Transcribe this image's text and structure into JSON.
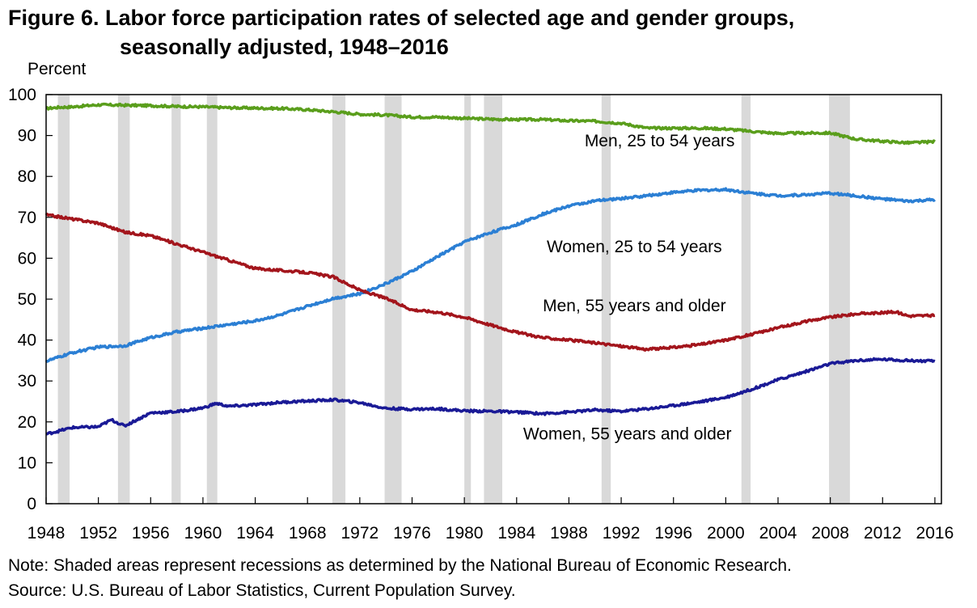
{
  "chart_data": {
    "type": "line",
    "title_line1": "Figure 6. Labor force participation rates of selected age and gender groups,",
    "title_line2": "seasonally adjusted, 1948–2016",
    "ylabel": "Percent",
    "xlim": [
      1948,
      2016.5
    ],
    "ylim": [
      0,
      100
    ],
    "x_ticks": [
      1948,
      1952,
      1956,
      1960,
      1964,
      1968,
      1972,
      1976,
      1980,
      1984,
      1988,
      1992,
      1996,
      2000,
      2004,
      2008,
      2012,
      2016
    ],
    "y_ticks": [
      0,
      10,
      20,
      30,
      40,
      50,
      60,
      70,
      80,
      90,
      100
    ],
    "grid": false,
    "recessions": [
      [
        1948.9,
        1949.8
      ],
      [
        1953.5,
        1954.4
      ],
      [
        1957.6,
        1958.3
      ],
      [
        1960.3,
        1961.1
      ],
      [
        1969.9,
        1970.9
      ],
      [
        1973.9,
        1975.2
      ],
      [
        1980.0,
        1980.5
      ],
      [
        1981.5,
        1982.9
      ],
      [
        1990.5,
        1991.2
      ],
      [
        2001.2,
        2001.9
      ],
      [
        2007.9,
        2009.5
      ]
    ],
    "series": [
      {
        "name": "Men, 25 to 54 years",
        "color": "#5a9e1c",
        "points": [
          [
            1948,
            96.6
          ],
          [
            1949,
            96.9
          ],
          [
            1950,
            97.0
          ],
          [
            1952,
            97.5
          ],
          [
            1954,
            97.4
          ],
          [
            1956,
            97.3
          ],
          [
            1958,
            97.1
          ],
          [
            1960,
            97.0
          ],
          [
            1962,
            96.8
          ],
          [
            1964,
            96.7
          ],
          [
            1966,
            96.6
          ],
          [
            1968,
            96.3
          ],
          [
            1970,
            95.8
          ],
          [
            1972,
            95.2
          ],
          [
            1974,
            95.0
          ],
          [
            1976,
            94.5
          ],
          [
            1978,
            94.5
          ],
          [
            1980,
            94.2
          ],
          [
            1982,
            94.0
          ],
          [
            1984,
            93.9
          ],
          [
            1986,
            93.9
          ],
          [
            1988,
            93.6
          ],
          [
            1990,
            93.5
          ],
          [
            1992,
            93.0
          ],
          [
            1994,
            91.8
          ],
          [
            1996,
            91.8
          ],
          [
            1998,
            91.8
          ],
          [
            2000,
            91.6
          ],
          [
            2002,
            91.0
          ],
          [
            2004,
            90.5
          ],
          [
            2006,
            90.6
          ],
          [
            2008,
            90.6
          ],
          [
            2010,
            89.1
          ],
          [
            2012,
            88.6
          ],
          [
            2014,
            88.2
          ],
          [
            2016,
            88.5
          ]
        ]
      },
      {
        "name": "Women, 25 to 54 years",
        "color": "#2b7fd4",
        "points": [
          [
            1948,
            34.8
          ],
          [
            1950,
            36.9
          ],
          [
            1952,
            38.3
          ],
          [
            1954,
            38.6
          ],
          [
            1956,
            40.6
          ],
          [
            1958,
            42.0
          ],
          [
            1960,
            42.9
          ],
          [
            1962,
            43.8
          ],
          [
            1964,
            44.7
          ],
          [
            1966,
            46.2
          ],
          [
            1968,
            48.3
          ],
          [
            1970,
            50.2
          ],
          [
            1972,
            51.3
          ],
          [
            1974,
            53.8
          ],
          [
            1976,
            56.8
          ],
          [
            1978,
            60.5
          ],
          [
            1980,
            64.0
          ],
          [
            1982,
            66.3
          ],
          [
            1984,
            68.2
          ],
          [
            1986,
            70.8
          ],
          [
            1988,
            72.8
          ],
          [
            1990,
            74.0
          ],
          [
            1992,
            74.6
          ],
          [
            1994,
            75.3
          ],
          [
            1996,
            76.1
          ],
          [
            1998,
            76.6
          ],
          [
            2000,
            76.8
          ],
          [
            2002,
            75.9
          ],
          [
            2004,
            75.3
          ],
          [
            2006,
            75.5
          ],
          [
            2008,
            75.9
          ],
          [
            2010,
            75.2
          ],
          [
            2012,
            74.5
          ],
          [
            2014,
            73.9
          ],
          [
            2016,
            74.3
          ]
        ]
      },
      {
        "name": "Men, 55 years and older",
        "color": "#a3151c",
        "points": [
          [
            1948,
            70.6
          ],
          [
            1950,
            69.6
          ],
          [
            1952,
            68.6
          ],
          [
            1954,
            66.4
          ],
          [
            1956,
            65.5
          ],
          [
            1958,
            63.5
          ],
          [
            1960,
            61.5
          ],
          [
            1962,
            59.5
          ],
          [
            1964,
            57.5
          ],
          [
            1966,
            57.0
          ],
          [
            1968,
            56.5
          ],
          [
            1970,
            55.4
          ],
          [
            1972,
            52.2
          ],
          [
            1974,
            50.2
          ],
          [
            1976,
            47.4
          ],
          [
            1978,
            46.8
          ],
          [
            1980,
            45.6
          ],
          [
            1982,
            43.7
          ],
          [
            1984,
            41.9
          ],
          [
            1986,
            40.6
          ],
          [
            1988,
            40.0
          ],
          [
            1990,
            39.3
          ],
          [
            1992,
            38.5
          ],
          [
            1994,
            37.7
          ],
          [
            1996,
            38.2
          ],
          [
            1998,
            38.9
          ],
          [
            2000,
            40.0
          ],
          [
            2002,
            41.4
          ],
          [
            2004,
            43.0
          ],
          [
            2006,
            44.5
          ],
          [
            2008,
            45.6
          ],
          [
            2010,
            46.4
          ],
          [
            2012,
            46.7
          ],
          [
            2013,
            46.9
          ],
          [
            2014,
            45.9
          ],
          [
            2016,
            46.0
          ]
        ]
      },
      {
        "name": "Women, 55 years and older",
        "color": "#1a1a96",
        "points": [
          [
            1948,
            17.0
          ],
          [
            1950,
            18.6
          ],
          [
            1952,
            18.8
          ],
          [
            1953,
            20.5
          ],
          [
            1954,
            19.0
          ],
          [
            1956,
            22.2
          ],
          [
            1958,
            22.5
          ],
          [
            1960,
            23.4
          ],
          [
            1961,
            24.5
          ],
          [
            1962,
            23.8
          ],
          [
            1964,
            24.2
          ],
          [
            1966,
            24.8
          ],
          [
            1968,
            25.1
          ],
          [
            1970,
            25.4
          ],
          [
            1972,
            24.7
          ],
          [
            1974,
            23.3
          ],
          [
            1976,
            23.1
          ],
          [
            1978,
            23.2
          ],
          [
            1980,
            22.7
          ],
          [
            1982,
            22.6
          ],
          [
            1984,
            22.4
          ],
          [
            1986,
            22.0
          ],
          [
            1988,
            22.4
          ],
          [
            1990,
            22.9
          ],
          [
            1992,
            22.6
          ],
          [
            1994,
            23.2
          ],
          [
            1996,
            24.0
          ],
          [
            1998,
            24.9
          ],
          [
            2000,
            26.0
          ],
          [
            2002,
            28.0
          ],
          [
            2004,
            30.3
          ],
          [
            2006,
            32.2
          ],
          [
            2008,
            34.2
          ],
          [
            2010,
            35.0
          ],
          [
            2012,
            35.3
          ],
          [
            2014,
            35.0
          ],
          [
            2016,
            34.8
          ]
        ]
      }
    ]
  },
  "note": "Note:  Shaded areas represent recessions as determined by the National Bureau of Economic Research.",
  "source": "Source: U.S. Bureau of Labor Statistics, Current Population Survey."
}
